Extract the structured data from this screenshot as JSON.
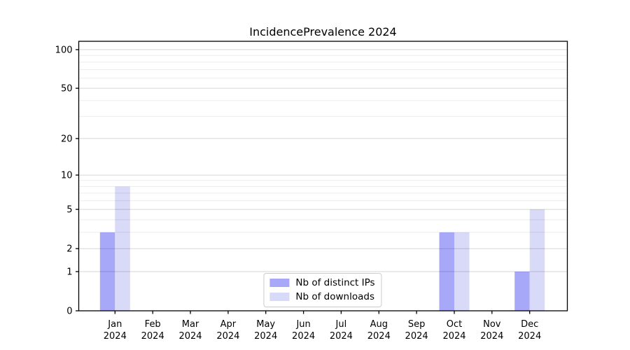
{
  "chart_data": {
    "type": "bar",
    "title": "IncidencePrevalence 2024",
    "categories": [
      {
        "month": "Jan",
        "year": "2024"
      },
      {
        "month": "Feb",
        "year": "2024"
      },
      {
        "month": "Mar",
        "year": "2024"
      },
      {
        "month": "Apr",
        "year": "2024"
      },
      {
        "month": "May",
        "year": "2024"
      },
      {
        "month": "Jun",
        "year": "2024"
      },
      {
        "month": "Jul",
        "year": "2024"
      },
      {
        "month": "Aug",
        "year": "2024"
      },
      {
        "month": "Sep",
        "year": "2024"
      },
      {
        "month": "Oct",
        "year": "2024"
      },
      {
        "month": "Nov",
        "year": "2024"
      },
      {
        "month": "Dec",
        "year": "2024"
      }
    ],
    "series": [
      {
        "name": "Nb of distinct IPs",
        "color": "#a8a8f8",
        "values": [
          3,
          0,
          0,
          0,
          0,
          0,
          0,
          0,
          0,
          3,
          0,
          1
        ]
      },
      {
        "name": "Nb of downloads",
        "color": "#d9d9f8",
        "values": [
          8,
          0,
          0,
          0,
          0,
          0,
          0,
          0,
          0,
          3,
          0,
          5
        ]
      }
    ],
    "xlabel": "",
    "ylabel": "",
    "y_axis": {
      "scale": "log1p",
      "major_ticks": [
        0,
        1,
        2,
        5,
        10,
        20,
        50,
        100
      ],
      "minor_gridlines": [
        3,
        4,
        6,
        7,
        8,
        9,
        30,
        40,
        60,
        70,
        80,
        90
      ],
      "ylim_top_value": 116
    },
    "grid": "on",
    "legend_position": "lower center",
    "colors": {
      "axis": "#000000",
      "tick_text": "#000000",
      "major_grid_rgba": "rgba(0,0,0,0.16)",
      "minor_grid_rgba": "rgba(0,0,0,0.075)"
    }
  }
}
